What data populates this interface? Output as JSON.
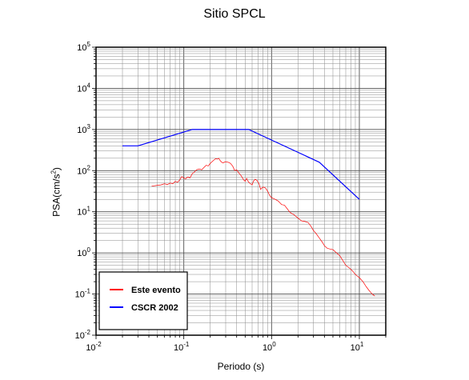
{
  "chart_data": {
    "type": "line",
    "title": "Sitio SPCL",
    "xlabel": "Periodo (s)",
    "ylabel": {
      "text": "PSA(cm/s",
      "sup": "2",
      "close": ")"
    },
    "xscale": "log",
    "yscale": "log",
    "xlim": [
      0.01,
      20
    ],
    "ylim": [
      0.01,
      100000
    ],
    "grid": true,
    "legend_position": "bottom-left",
    "x_ticks": [
      {
        "value": 0.01,
        "base": "10",
        "exp": "-2"
      },
      {
        "value": 0.1,
        "base": "10",
        "exp": "-1"
      },
      {
        "value": 1,
        "base": "10",
        "exp": "0"
      },
      {
        "value": 10,
        "base": "10",
        "exp": "1"
      }
    ],
    "y_ticks": [
      {
        "value": 0.01,
        "base": "10",
        "exp": "-2"
      },
      {
        "value": 0.1,
        "base": "10",
        "exp": "-1"
      },
      {
        "value": 1,
        "base": "10",
        "exp": "0"
      },
      {
        "value": 10,
        "base": "10",
        "exp": "1"
      },
      {
        "value": 100,
        "base": "10",
        "exp": "2"
      },
      {
        "value": 1000,
        "base": "10",
        "exp": "3"
      },
      {
        "value": 10000,
        "base": "10",
        "exp": "4"
      },
      {
        "value": 100000,
        "base": "10",
        "exp": "5"
      }
    ],
    "series": [
      {
        "name": "Este evento",
        "color": "#ff0000",
        "points": [
          [
            0.043,
            42
          ],
          [
            0.05,
            44
          ],
          [
            0.055,
            45
          ],
          [
            0.06,
            48
          ],
          [
            0.065,
            46
          ],
          [
            0.07,
            50
          ],
          [
            0.075,
            48
          ],
          [
            0.08,
            55
          ],
          [
            0.085,
            52
          ],
          [
            0.09,
            60
          ],
          [
            0.095,
            72
          ],
          [
            0.1,
            66
          ],
          [
            0.105,
            63
          ],
          [
            0.11,
            70
          ],
          [
            0.118,
            67
          ],
          [
            0.125,
            85
          ],
          [
            0.13,
            90
          ],
          [
            0.14,
            105
          ],
          [
            0.15,
            110
          ],
          [
            0.16,
            105
          ],
          [
            0.17,
            120
          ],
          [
            0.18,
            135
          ],
          [
            0.19,
            130
          ],
          [
            0.2,
            150
          ],
          [
            0.21,
            165
          ],
          [
            0.22,
            180
          ],
          [
            0.23,
            195
          ],
          [
            0.24,
            190
          ],
          [
            0.25,
            200
          ],
          [
            0.26,
            175
          ],
          [
            0.27,
            160
          ],
          [
            0.28,
            155
          ],
          [
            0.3,
            165
          ],
          [
            0.32,
            160
          ],
          [
            0.34,
            150
          ],
          [
            0.36,
            130
          ],
          [
            0.38,
            100
          ],
          [
            0.4,
            105
          ],
          [
            0.42,
            90
          ],
          [
            0.45,
            75
          ],
          [
            0.48,
            60
          ],
          [
            0.5,
            55
          ],
          [
            0.52,
            65
          ],
          [
            0.54,
            55
          ],
          [
            0.56,
            50
          ],
          [
            0.6,
            45
          ],
          [
            0.62,
            55
          ],
          [
            0.65,
            62
          ],
          [
            0.68,
            58
          ],
          [
            0.72,
            48
          ],
          [
            0.75,
            35
          ],
          [
            0.8,
            40
          ],
          [
            0.85,
            38
          ],
          [
            0.9,
            32
          ],
          [
            0.95,
            25
          ],
          [
            1.0,
            22
          ],
          [
            1.1,
            20
          ],
          [
            1.2,
            18
          ],
          [
            1.3,
            15
          ],
          [
            1.4,
            14.5
          ],
          [
            1.5,
            12
          ],
          [
            1.6,
            10
          ],
          [
            1.7,
            9
          ],
          [
            1.8,
            8.5
          ],
          [
            2.0,
            7
          ],
          [
            2.2,
            6
          ],
          [
            2.4,
            5.8
          ],
          [
            2.6,
            5.5
          ],
          [
            2.8,
            4.5
          ],
          [
            3.0,
            3.5
          ],
          [
            3.2,
            3.0
          ],
          [
            3.5,
            2.3
          ],
          [
            3.8,
            1.8
          ],
          [
            4.0,
            1.5
          ],
          [
            4.3,
            1.3
          ],
          [
            4.6,
            1.25
          ],
          [
            5.0,
            1.2
          ],
          [
            5.5,
            1.0
          ],
          [
            6.0,
            0.85
          ],
          [
            6.5,
            0.65
          ],
          [
            7.0,
            0.5
          ],
          [
            7.5,
            0.45
          ],
          [
            8.0,
            0.4
          ],
          [
            8.5,
            0.35
          ],
          [
            9.0,
            0.3
          ],
          [
            10.0,
            0.25
          ],
          [
            11.0,
            0.2
          ],
          [
            12.0,
            0.15
          ],
          [
            13.0,
            0.12
          ],
          [
            14.0,
            0.1
          ],
          [
            15.0,
            0.09
          ]
        ]
      },
      {
        "name": "CSCR 2002",
        "color": "#0000ff",
        "points": [
          [
            0.02,
            400
          ],
          [
            0.03,
            400
          ],
          [
            0.125,
            1000
          ],
          [
            0.55,
            1000
          ],
          [
            3.5,
            160
          ],
          [
            10.0,
            20
          ]
        ]
      }
    ]
  }
}
